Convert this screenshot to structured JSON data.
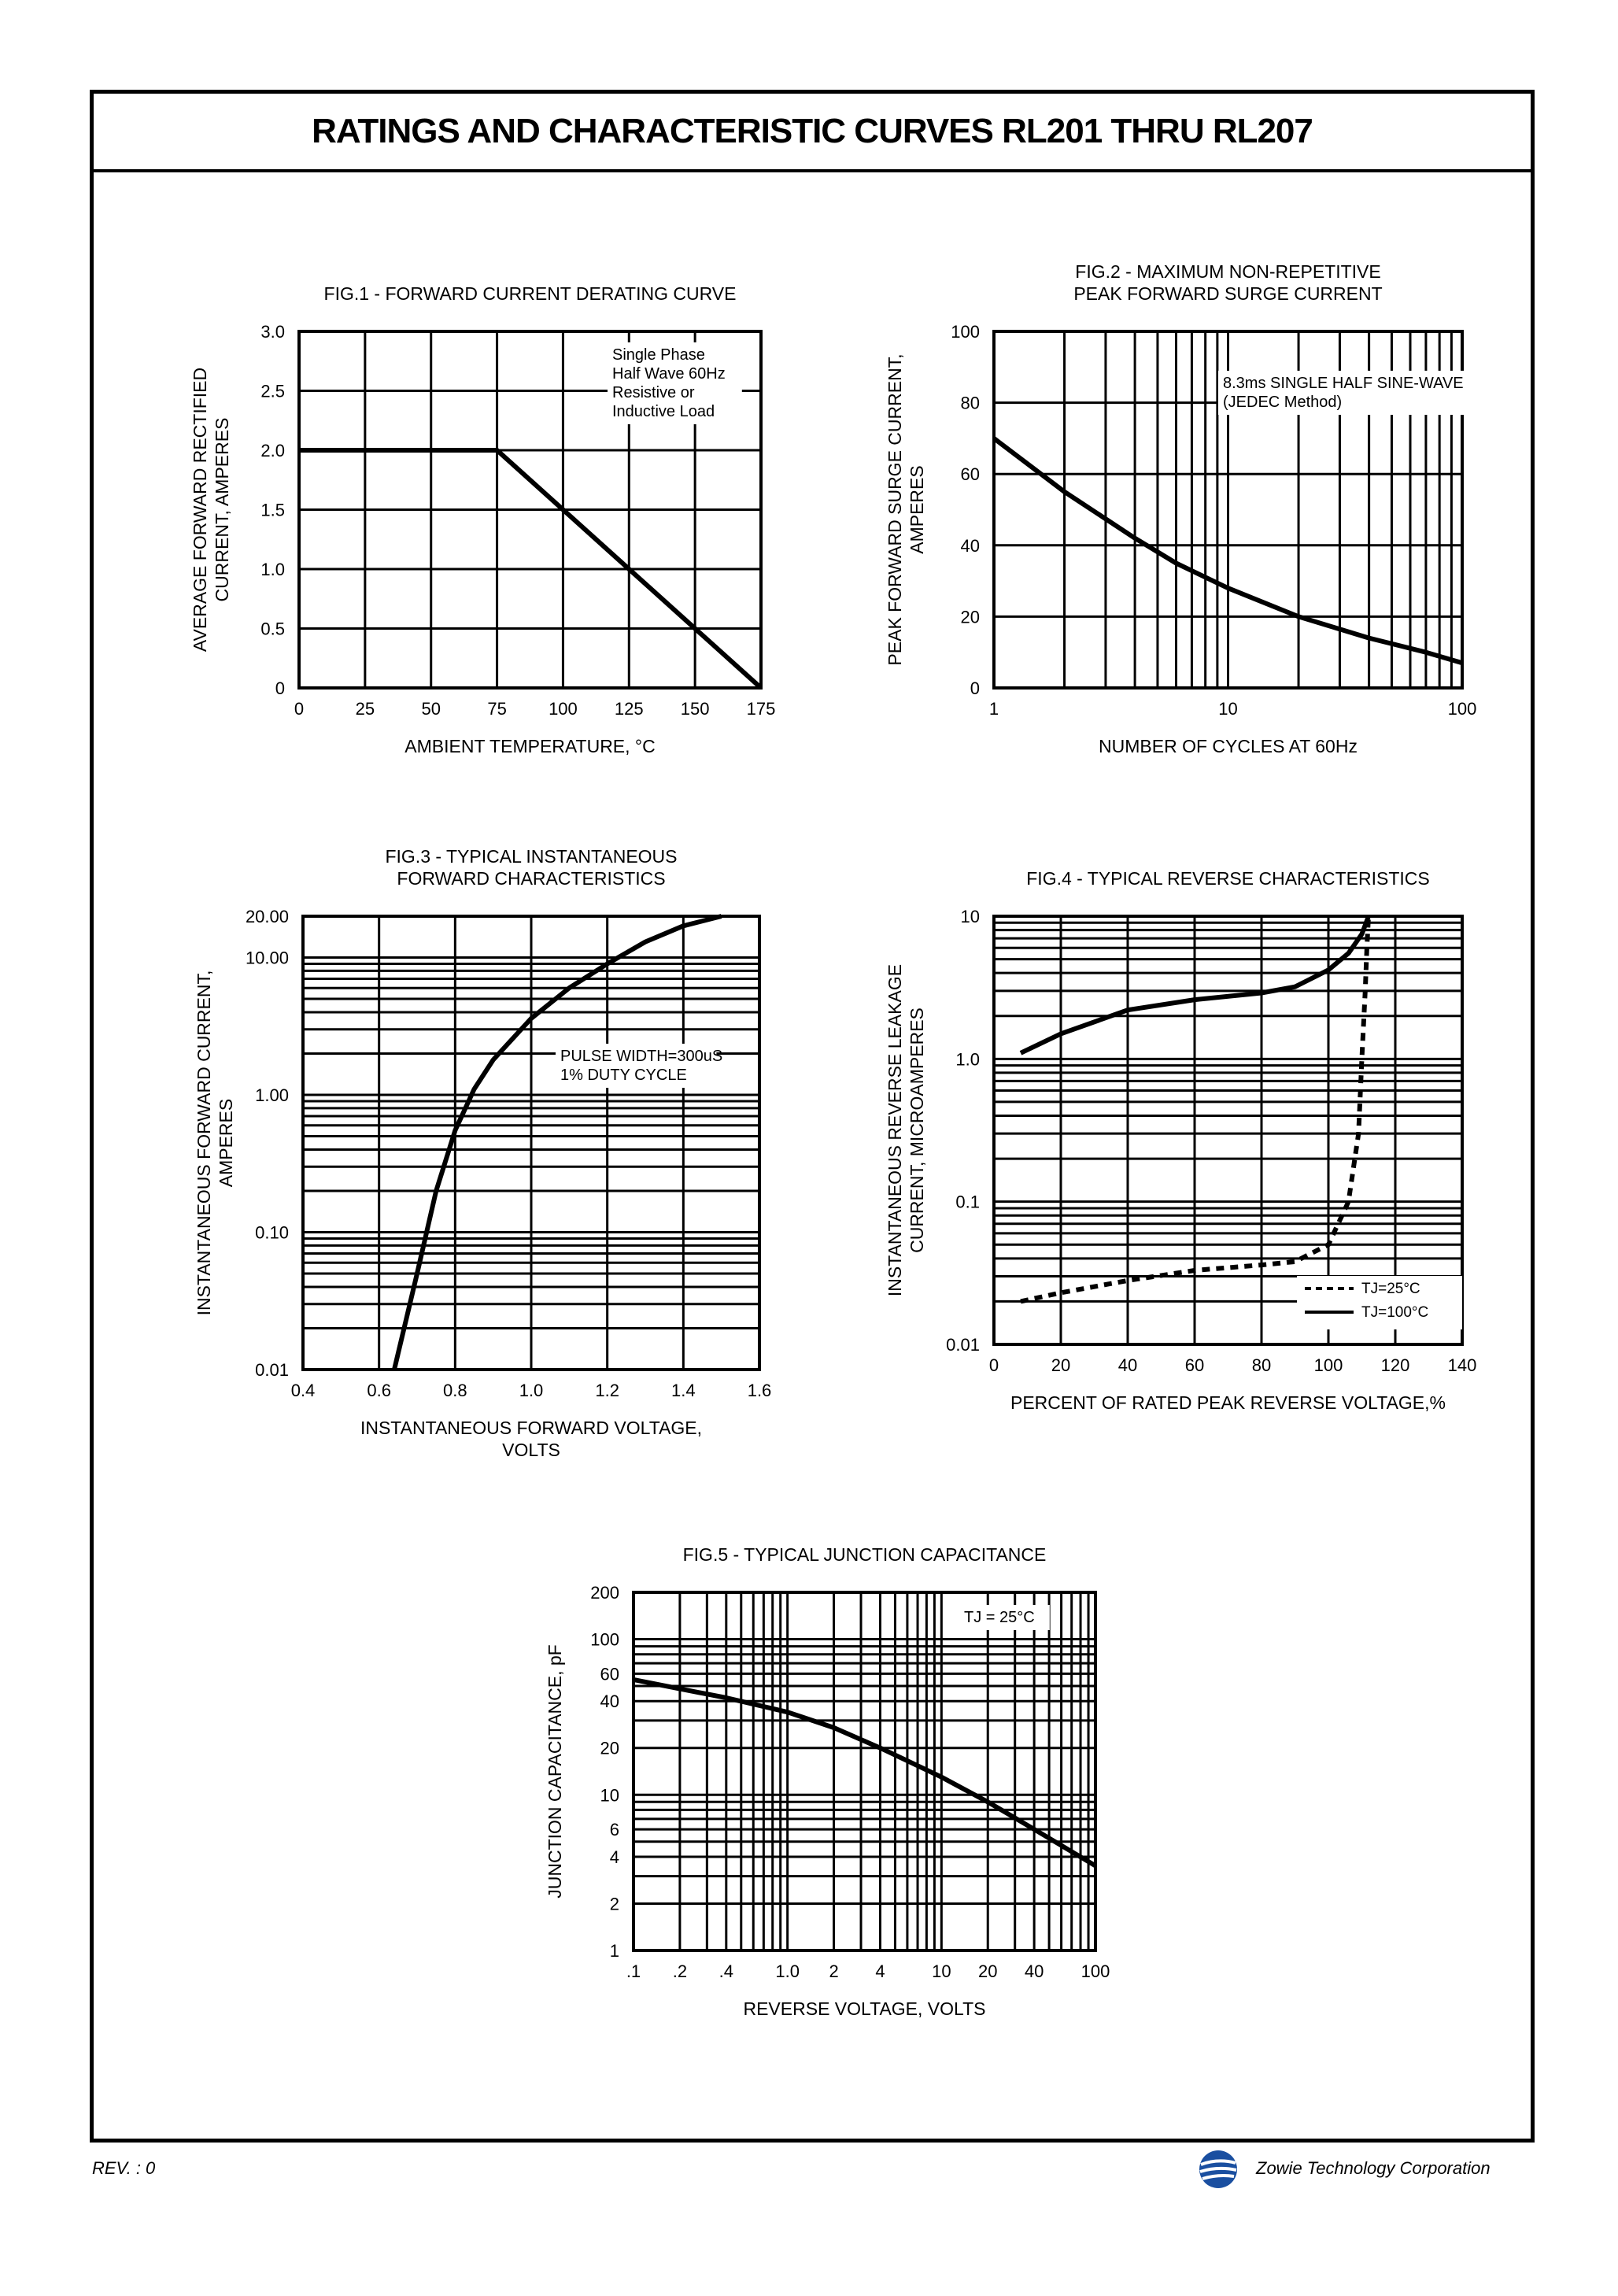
{
  "page": {
    "title": "RATINGS AND CHARACTERISTIC CURVES RL201 THRU RL207",
    "footer_rev": "REV. : 0",
    "footer_company": "Zowie Technology Corporation",
    "logo_icon": "zowie-globe-logo"
  },
  "chart_data": [
    {
      "id": "fig1",
      "type": "line",
      "title": "FIG.1 - FORWARD CURRENT DERATING CURVE",
      "xlabel": "AMBIENT TEMPERATURE, °C",
      "ylabel": [
        "AVERAGE FORWARD RECTIFIED",
        "CURRENT, AMPERES"
      ],
      "xscale": "linear",
      "yscale": "linear",
      "xlim": [
        0,
        175
      ],
      "ylim": [
        0,
        3.0
      ],
      "xticks": [
        0,
        25,
        50,
        75,
        100,
        125,
        150,
        175
      ],
      "xtick_labels": [
        "0",
        "25",
        "50",
        "75",
        "100",
        "125",
        "150",
        "175"
      ],
      "yticks": [
        0,
        0.5,
        1.0,
        1.5,
        2.0,
        2.5,
        3.0
      ],
      "ytick_labels": [
        "0",
        "0.5",
        "1.0",
        "1.5",
        "2.0",
        "2.5",
        "3.0"
      ],
      "annotation": [
        "Single Phase",
        "Half Wave 60Hz",
        "Resistive or",
        "Inductive Load"
      ],
      "grid": true,
      "series": [
        {
          "style": "solid",
          "x": [
            0,
            75,
            175
          ],
          "y": [
            2.0,
            2.0,
            0
          ]
        }
      ]
    },
    {
      "id": "fig2",
      "type": "line",
      "title": [
        "FIG.2 - MAXIMUM NON-REPETITIVE",
        "PEAK FORWARD SURGE CURRENT"
      ],
      "xlabel": "NUMBER OF CYCLES AT 60Hz",
      "ylabel": [
        "PEAK FORWARD SURGE CURRENT,",
        "AMPERES"
      ],
      "xscale": "log",
      "yscale": "linear",
      "xlim": [
        1,
        100
      ],
      "ylim": [
        0,
        100
      ],
      "xticks": [
        1,
        10,
        100
      ],
      "xtick_labels": [
        "1",
        "10",
        "100"
      ],
      "yticks": [
        0,
        20,
        40,
        60,
        80,
        100
      ],
      "ytick_labels": [
        "0",
        "20",
        "40",
        "60",
        "80",
        "100"
      ],
      "annotation": [
        "8.3ms SINGLE HALF SINE-WAVE",
        "(JEDEC Method)"
      ],
      "grid": true,
      "series": [
        {
          "style": "solid",
          "x": [
            1,
            2,
            4,
            6,
            10,
            20,
            40,
            70,
            100
          ],
          "y": [
            70,
            55,
            42,
            35,
            28,
            20,
            14,
            10,
            7
          ]
        }
      ]
    },
    {
      "id": "fig3",
      "type": "line",
      "title": [
        "FIG.3 - TYPICAL INSTANTANEOUS",
        "FORWARD CHARACTERISTICS"
      ],
      "xlabel": [
        "INSTANTANEOUS FORWARD VOLTAGE,",
        "VOLTS"
      ],
      "ylabel": [
        "INSTANTANEOUS FORWARD CURRENT,",
        "AMPERES"
      ],
      "xscale": "linear",
      "yscale": "log",
      "xlim": [
        0.4,
        1.6
      ],
      "ylim": [
        0.01,
        20
      ],
      "xticks": [
        0.4,
        0.6,
        0.8,
        1.0,
        1.2,
        1.4,
        1.6
      ],
      "xtick_labels": [
        "0.4",
        "0.6",
        "0.8",
        "1.0",
        "1.2",
        "1.4",
        "1.6"
      ],
      "yticks": [
        0.01,
        0.1,
        1,
        10,
        20
      ],
      "ytick_labels": [
        "0.01",
        "0.10",
        "1.00",
        "10.00",
        "20.00"
      ],
      "annotation": [
        "PULSE WIDTH=300uS",
        "1% DUTY CYCLE"
      ],
      "grid": true,
      "series": [
        {
          "style": "solid",
          "x": [
            0.64,
            0.7,
            0.75,
            0.8,
            0.85,
            0.9,
            1.0,
            1.1,
            1.2,
            1.3,
            1.4,
            1.5
          ],
          "y": [
            0.01,
            0.05,
            0.2,
            0.55,
            1.1,
            1.8,
            3.6,
            6,
            9,
            13,
            17,
            20
          ]
        }
      ]
    },
    {
      "id": "fig4",
      "type": "line",
      "title": "FIG.4 - TYPICAL REVERSE CHARACTERISTICS",
      "xlabel": "PERCENT OF RATED PEAK REVERSE VOLTAGE,%",
      "ylabel": [
        "INSTANTANEOUS REVERSE LEAKAGE",
        "CURRENT, MICROAMPERES"
      ],
      "xscale": "linear",
      "yscale": "log",
      "xlim": [
        0,
        140
      ],
      "ylim": [
        0.01,
        10
      ],
      "xticks": [
        0,
        20,
        40,
        60,
        80,
        100,
        120,
        140
      ],
      "xtick_labels": [
        "0",
        "20",
        "40",
        "60",
        "80",
        "100",
        "120",
        "140"
      ],
      "yticks": [
        0.01,
        0.1,
        1,
        10
      ],
      "ytick_labels": [
        "0.01",
        "0.1",
        "1.0",
        "10"
      ],
      "grid": true,
      "legend": "bottom-right",
      "series": [
        {
          "name": "TJ=25°C",
          "style": "dashed",
          "x": [
            8,
            20,
            40,
            60,
            80,
            90,
            100,
            106,
            109,
            110,
            111,
            111.5,
            112
          ],
          "y": [
            0.02,
            0.023,
            0.028,
            0.033,
            0.036,
            0.038,
            0.05,
            0.1,
            0.3,
            1.0,
            3.0,
            6.0,
            10
          ]
        },
        {
          "name": "TJ=100°C",
          "style": "solid",
          "x": [
            8,
            20,
            40,
            60,
            80,
            90,
            100,
            106,
            110,
            112
          ],
          "y": [
            1.1,
            1.5,
            2.2,
            2.6,
            2.9,
            3.2,
            4.2,
            5.5,
            7.5,
            10
          ]
        }
      ]
    },
    {
      "id": "fig5",
      "type": "line",
      "title": "FIG.5 - TYPICAL JUNCTION CAPACITANCE",
      "xlabel": "REVERSE VOLTAGE, VOLTS",
      "ylabel": [
        "JUNCTION CAPACITANCE, pF"
      ],
      "xscale": "log",
      "yscale": "log",
      "xlim": [
        0.1,
        100
      ],
      "ylim": [
        1,
        200
      ],
      "xticks": [
        0.1,
        0.2,
        0.4,
        1,
        2,
        4,
        10,
        20,
        40,
        100
      ],
      "xtick_labels": [
        ".1",
        ".2",
        ".4",
        "1.0",
        "2",
        "4",
        "10",
        "20",
        "40",
        "100"
      ],
      "yticks": [
        1,
        2,
        4,
        6,
        10,
        20,
        40,
        60,
        100,
        200
      ],
      "ytick_labels": [
        "1",
        "2",
        "4",
        "6",
        "10",
        "20",
        "40",
        "60",
        "100",
        "200"
      ],
      "annotation": [
        "TJ = 25°C"
      ],
      "grid": true,
      "series": [
        {
          "style": "solid",
          "x": [
            0.1,
            0.2,
            0.4,
            1,
            2,
            4,
            10,
            20,
            40,
            100
          ],
          "y": [
            55,
            48,
            42,
            34,
            27,
            20,
            13,
            9,
            6,
            3.5
          ]
        }
      ]
    }
  ]
}
